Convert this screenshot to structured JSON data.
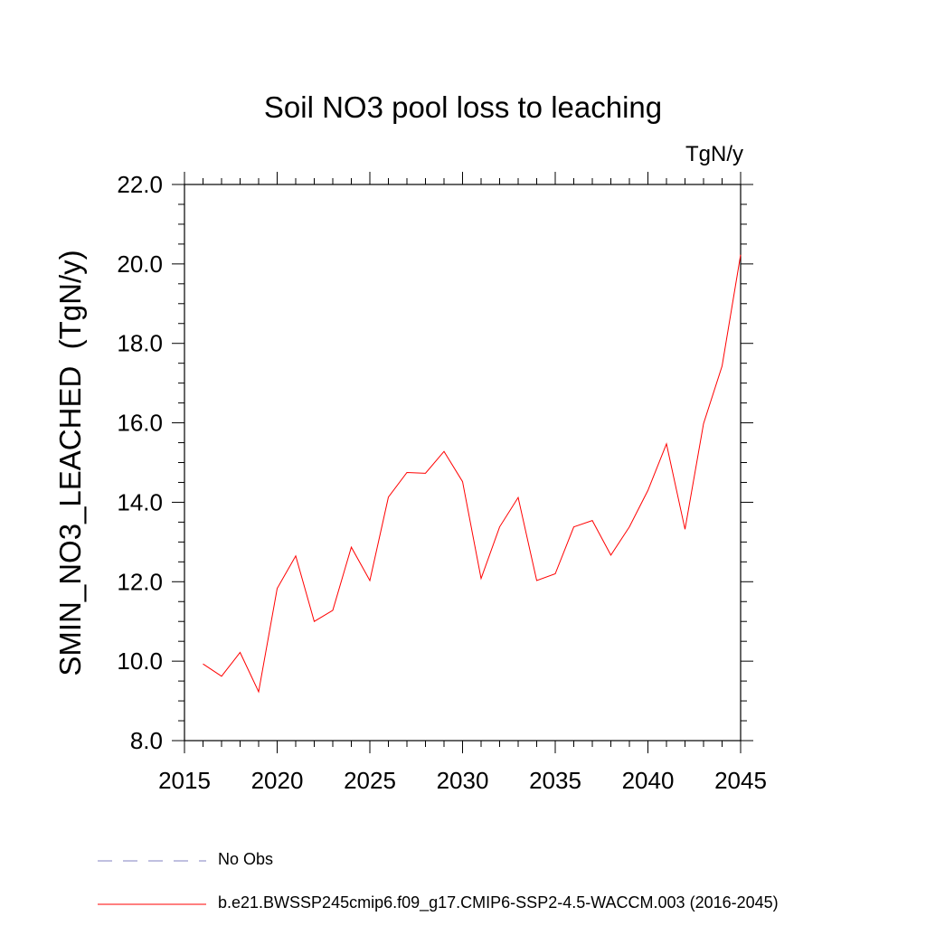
{
  "chart_data": {
    "type": "line",
    "title": "Soil NO3 pool loss to leaching",
    "units_label": "TgN/y",
    "ylabel": "SMIN_NO3_LEACHED  (TgN/y)",
    "xlim": [
      2015,
      2045
    ],
    "ylim": [
      8.0,
      22.0
    ],
    "x_ticks": [
      "2015",
      "2020",
      "2025",
      "2030",
      "2035",
      "2040",
      "2045"
    ],
    "y_ticks": [
      "8.0",
      "10.0",
      "12.0",
      "14.0",
      "16.0",
      "18.0",
      "20.0",
      "22.0"
    ],
    "series": [
      {
        "name": "b.e21.BWSSP245cmip6.f09_g17.CMIP6-SSP2-4.5-WACCM.003 (2016-2045)",
        "color": "#ff0000",
        "x": [
          2016,
          2017,
          2018,
          2019,
          2020,
          2021,
          2022,
          2023,
          2024,
          2025,
          2026,
          2027,
          2028,
          2029,
          2030,
          2031,
          2032,
          2033,
          2034,
          2035,
          2036,
          2037,
          2038,
          2039,
          2040,
          2041,
          2042,
          2043,
          2044,
          2045
        ],
        "y": [
          9.93,
          9.62,
          10.22,
          9.23,
          11.83,
          12.65,
          11.0,
          11.28,
          12.87,
          12.03,
          14.13,
          14.75,
          14.73,
          15.28,
          14.52,
          12.08,
          13.38,
          14.12,
          12.03,
          12.2,
          13.38,
          13.54,
          12.67,
          13.38,
          14.3,
          15.47,
          13.32,
          15.98,
          17.43,
          20.23
        ]
      }
    ],
    "legend": [
      {
        "label": "No Obs",
        "style": "dashed",
        "color": "#8080c0"
      },
      {
        "label": "b.e21.BWSSP245cmip6.f09_g17.CMIP6-SSP2-4.5-WACCM.003 (2016-2045)",
        "style": "solid",
        "color": "#ff0000"
      }
    ],
    "grid": false,
    "legend_position": "bottom"
  }
}
